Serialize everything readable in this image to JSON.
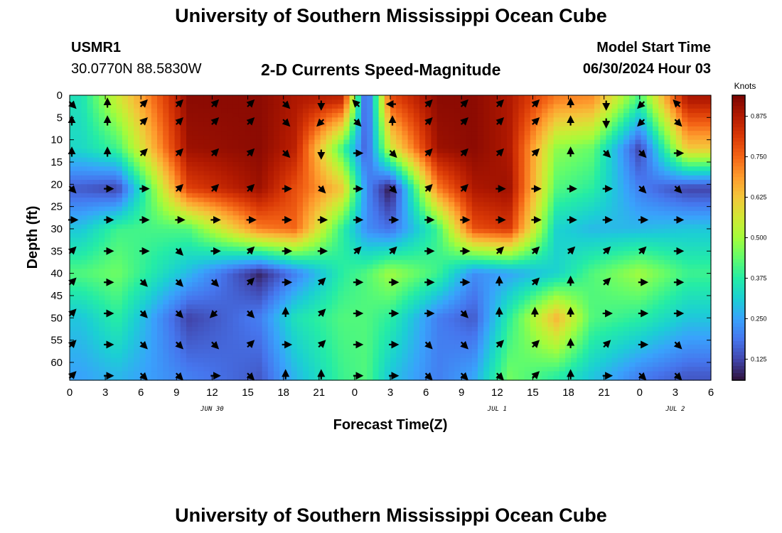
{
  "header": {
    "title": "University of Southern Mississippi Ocean Cube",
    "station_id": "USMR1",
    "coordinates": "30.0770N  88.5830W",
    "plot_title": "2-D Currents Speed-Magnitude",
    "model_start_label": "Model Start Time",
    "model_start_value": "06/30/2024 Hour 03"
  },
  "footer": {
    "title": "University of Southern Mississippi Ocean Cube"
  },
  "chart_data": {
    "type": "heatmap",
    "title": "2-D Currents Speed-Magnitude",
    "xlabel": "Forecast Time(Z)",
    "ylabel": "Depth (ft)",
    "x_ticks": [
      "0",
      "3",
      "6",
      "9",
      "12",
      "15",
      "18",
      "21",
      "0",
      "3",
      "6",
      "9",
      "12",
      "15",
      "18",
      "21",
      "0",
      "3",
      "6"
    ],
    "x_hours": [
      0,
      3,
      6,
      9,
      12,
      15,
      18,
      21,
      24,
      27,
      30,
      33,
      36,
      39,
      42,
      45,
      48,
      51,
      54
    ],
    "date_labels": [
      {
        "text": "JUN 30",
        "hour": 12
      },
      {
        "text": "JUL 1",
        "hour": 36
      },
      {
        "text": "JUL 2",
        "hour": 51
      }
    ],
    "y_ticks": [
      0,
      5,
      10,
      15,
      20,
      25,
      30,
      35,
      40,
      45,
      50,
      55,
      60
    ],
    "xlim": [
      0,
      54
    ],
    "ylim": [
      0,
      64
    ],
    "y_inverted": true,
    "colorbar": {
      "label": "Knots",
      "ticks": [
        0.125,
        0.25,
        0.375,
        0.5,
        0.625,
        0.75,
        0.875
      ],
      "tick_labels": [
        "0.125",
        "0.250",
        "0.375",
        "0.500",
        "0.625",
        "0.750",
        "0.875"
      ],
      "range": [
        0.06,
        0.94
      ]
    },
    "colormap": [
      "#30123b",
      "#4145ab",
      "#4675ed",
      "#39a2fc",
      "#1bcfd4",
      "#24eca6",
      "#61fc6c",
      "#a4fc3b",
      "#d1e834",
      "#f3c63a",
      "#fe9b2d",
      "#f36315",
      "#d93806",
      "#b11901",
      "#7a0402"
    ],
    "series": [
      {
        "name": "speed",
        "hours": [
          1,
          4,
          10,
          16,
          19,
          23,
          25,
          27,
          31,
          34,
          37,
          41,
          44,
          48,
          52
        ],
        "depth": 1,
        "values": [
          0.35,
          0.55,
          0.92,
          0.92,
          0.88,
          0.85,
          0.12,
          0.78,
          0.92,
          0.92,
          0.88,
          0.72,
          0.7,
          0.4,
          0.88
        ]
      },
      {
        "name": "speed",
        "hours": [
          1,
          4,
          10,
          16,
          19,
          23,
          25,
          27,
          31,
          34,
          37,
          41,
          44,
          48,
          52
        ],
        "depth": 12,
        "values": [
          0.33,
          0.4,
          0.9,
          0.92,
          0.86,
          0.4,
          0.15,
          0.55,
          0.9,
          0.92,
          0.88,
          0.48,
          0.44,
          0.12,
          0.62
        ]
      },
      {
        "name": "speed",
        "hours": [
          1,
          4,
          10,
          16,
          19,
          23,
          25,
          27,
          31,
          34,
          37,
          41,
          44,
          48,
          52
        ],
        "depth": 21,
        "values": [
          0.15,
          0.12,
          0.8,
          0.9,
          0.78,
          0.62,
          0.22,
          0.06,
          0.72,
          0.88,
          0.9,
          0.42,
          0.38,
          0.2,
          0.12
        ]
      },
      {
        "name": "speed",
        "hours": [
          1,
          4,
          10,
          16,
          19,
          23,
          25,
          27,
          31,
          34,
          37,
          41,
          44,
          48,
          52
        ],
        "depth": 30,
        "values": [
          0.3,
          0.4,
          0.42,
          0.72,
          0.75,
          0.38,
          0.22,
          0.18,
          0.4,
          0.78,
          0.82,
          0.32,
          0.28,
          0.28,
          0.3
        ]
      },
      {
        "name": "speed",
        "hours": [
          1,
          4,
          10,
          16,
          19,
          23,
          25,
          27,
          31,
          34,
          37,
          41,
          44,
          48,
          52
        ],
        "depth": 40,
        "values": [
          0.42,
          0.45,
          0.28,
          0.08,
          0.2,
          0.38,
          0.42,
          0.5,
          0.4,
          0.22,
          0.25,
          0.32,
          0.42,
          0.5,
          0.4
        ]
      },
      {
        "name": "speed",
        "hours": [
          1,
          4,
          10,
          16,
          19,
          23,
          25,
          27,
          31,
          34,
          37,
          41,
          44,
          48,
          52
        ],
        "depth": 50,
        "values": [
          0.3,
          0.38,
          0.12,
          0.2,
          0.35,
          0.42,
          0.42,
          0.38,
          0.2,
          0.15,
          0.38,
          0.65,
          0.42,
          0.38,
          0.3
        ]
      },
      {
        "name": "speed",
        "hours": [
          1,
          4,
          10,
          16,
          19,
          23,
          25,
          27,
          31,
          34,
          37,
          41,
          44,
          48,
          52
        ],
        "depth": 63,
        "values": [
          0.25,
          0.28,
          0.2,
          0.15,
          0.28,
          0.4,
          0.42,
          0.3,
          0.2,
          0.25,
          0.45,
          0.38,
          0.3,
          0.2,
          0.15
        ]
      }
    ],
    "vector_rows_depth": [
      2,
      6,
      13,
      21,
      28,
      35,
      42,
      49,
      56,
      63
    ],
    "vector_cols_hour": [
      0,
      3,
      6,
      9,
      12,
      15,
      18,
      21,
      24,
      27,
      30,
      33,
      36,
      39,
      42,
      45,
      48,
      51
    ],
    "vector_direction_deg": [
      [
        135,
        0,
        45,
        45,
        45,
        45,
        135,
        180,
        315,
        270,
        45,
        45,
        45,
        45,
        0,
        180,
        225,
        315
      ],
      [
        0,
        0,
        45,
        45,
        45,
        45,
        135,
        225,
        135,
        0,
        45,
        45,
        45,
        45,
        0,
        180,
        225,
        135
      ],
      [
        0,
        0,
        45,
        45,
        45,
        45,
        135,
        180,
        90,
        135,
        45,
        45,
        45,
        45,
        0,
        135,
        135,
        90
      ],
      [
        135,
        90,
        90,
        45,
        45,
        45,
        90,
        135,
        90,
        135,
        45,
        45,
        90,
        90,
        90,
        90,
        135,
        135
      ],
      [
        90,
        90,
        90,
        90,
        90,
        90,
        90,
        90,
        90,
        90,
        90,
        90,
        90,
        90,
        90,
        90,
        90,
        90
      ],
      [
        45,
        90,
        90,
        135,
        90,
        45,
        90,
        90,
        45,
        45,
        90,
        90,
        45,
        45,
        45,
        45,
        45,
        90
      ],
      [
        45,
        90,
        135,
        135,
        135,
        45,
        90,
        45,
        90,
        90,
        90,
        90,
        0,
        45,
        0,
        45,
        90,
        90
      ],
      [
        45,
        90,
        135,
        135,
        225,
        135,
        0,
        45,
        90,
        90,
        90,
        135,
        0,
        0,
        0,
        90,
        90,
        90
      ],
      [
        45,
        90,
        135,
        135,
        135,
        45,
        90,
        45,
        90,
        90,
        135,
        135,
        45,
        45,
        0,
        45,
        90,
        135
      ],
      [
        45,
        90,
        135,
        135,
        90,
        135,
        0,
        0,
        90,
        90,
        135,
        135,
        135,
        45,
        0,
        90,
        135,
        135
      ]
    ]
  }
}
